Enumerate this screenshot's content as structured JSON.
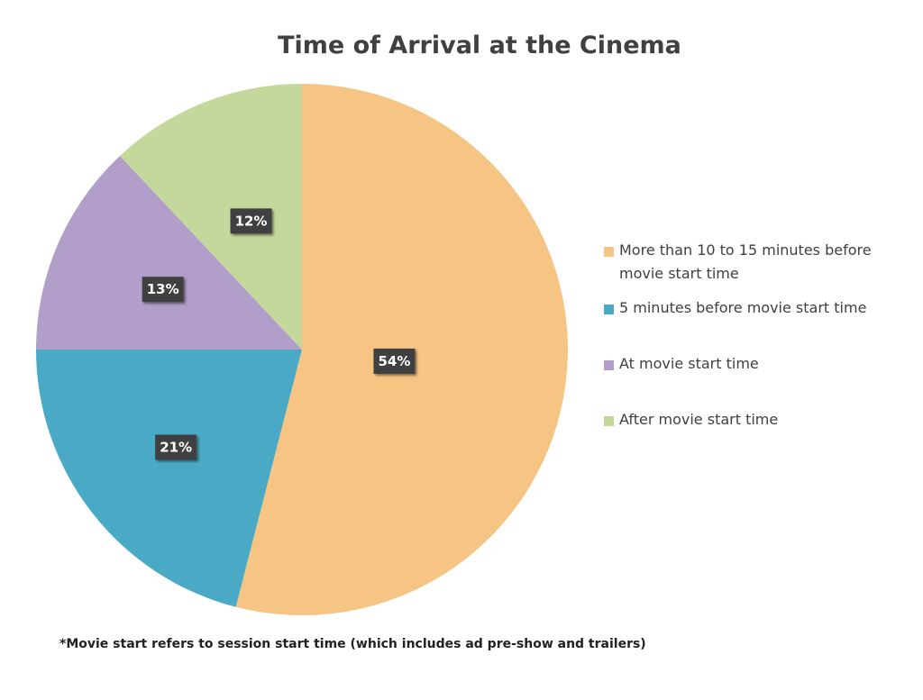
{
  "chart_data": {
    "type": "pie",
    "title": "Time of Arrival at the Cinema",
    "legend_position": "right",
    "slices": [
      {
        "label": "More than 10 to 15 minutes before movie start time",
        "value": 54,
        "display": "54%",
        "color": "#F7C583"
      },
      {
        "label": "5 minutes before movie start time",
        "value": 21,
        "display": "21%",
        "color": "#4AAAC6"
      },
      {
        "label": "At movie start time",
        "value": 13,
        "display": "13%",
        "color": "#B19FC9"
      },
      {
        "label": "After movie start time",
        "value": 12,
        "display": "12%",
        "color": "#C5D89C"
      }
    ],
    "data_label_background": "#404040"
  },
  "footnote": "*Movie start refers to session start time (which includes ad pre-show and trailers)"
}
